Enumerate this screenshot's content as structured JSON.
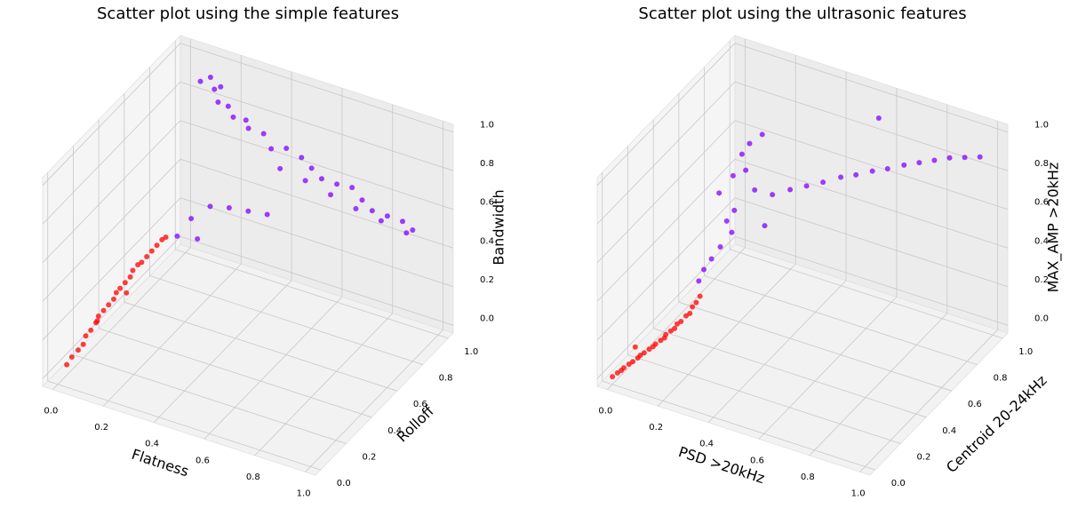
{
  "chart_data": [
    {
      "type": "scatter3d",
      "title": "Scatter plot using the simple features",
      "xlabel": "Flatness",
      "ylabel": "Rolloff",
      "zlabel": "Bandwidth",
      "xlim": [
        -0.04,
        1.04
      ],
      "ylim": [
        -0.04,
        1.04
      ],
      "zlim": [
        -0.04,
        1.04
      ],
      "xticks": [
        {
          "value": 0,
          "label": "0.0"
        },
        {
          "value": 0.2,
          "label": "0.2"
        },
        {
          "value": 0.4,
          "label": "0.4"
        },
        {
          "value": 0.6,
          "label": "0.6"
        },
        {
          "value": 0.8,
          "label": "0.8"
        },
        {
          "value": 1,
          "label": "1.0"
        }
      ],
      "yticks": [
        {
          "value": 0,
          "label": "0.0"
        },
        {
          "value": 0.2,
          "label": "0.2"
        },
        {
          "value": 0.4,
          "label": "0.4"
        },
        {
          "value": 0.6,
          "label": "0.6"
        },
        {
          "value": 0.8,
          "label": "0.8"
        },
        {
          "value": 1,
          "label": "1.0"
        }
      ],
      "zticks": [
        {
          "value": 0,
          "label": "0.0"
        },
        {
          "value": 0.2,
          "label": "0.2"
        },
        {
          "value": 0.4,
          "label": "0.4"
        },
        {
          "value": 0.6,
          "label": "0.6"
        },
        {
          "value": 0.8,
          "label": "0.8"
        },
        {
          "value": 1,
          "label": "1.0"
        }
      ],
      "grid": true,
      "series": [
        {
          "color": "#ff0000",
          "x": [
            0.02,
            0.03,
            0.04,
            0.05,
            0.05,
            0.06,
            0.07,
            0.07,
            0.08,
            0.09,
            0.1,
            0.1,
            0.11,
            0.12,
            0.13,
            0.13,
            0.14,
            0.15,
            0.16,
            0.17,
            0.18,
            0.19,
            0.2,
            0.12,
            0.08
          ],
          "y": [
            0.03,
            0.05,
            0.08,
            0.1,
            0.12,
            0.14,
            0.16,
            0.18,
            0.2,
            0.22,
            0.24,
            0.26,
            0.27,
            0.29,
            0.31,
            0.33,
            0.35,
            0.36,
            0.38,
            0.4,
            0.42,
            0.44,
            0.45,
            0.3,
            0.15
          ],
          "z": [
            0.05,
            0.08,
            0.1,
            0.12,
            0.15,
            0.17,
            0.2,
            0.22,
            0.24,
            0.26,
            0.28,
            0.3,
            0.32,
            0.34,
            0.36,
            0.38,
            0.4,
            0.41,
            0.43,
            0.45,
            0.47,
            0.49,
            0.5,
            0.28,
            0.22
          ]
        },
        {
          "color": "#8000ff",
          "x": [
            0.12,
            0.15,
            0.18,
            0.2,
            0.22,
            0.25,
            0.28,
            0.14,
            0.3,
            0.35,
            0.4,
            0.45,
            0.5,
            0.55,
            0.6,
            0.65,
            0.7,
            0.75,
            0.8,
            0.85,
            0.9,
            0.95,
            0.4,
            0.5,
            0.6,
            0.7,
            0.8,
            0.9,
            0.3,
            0.35,
            0.4,
            0.45,
            0.25,
            0.3,
            0.22
          ],
          "y": [
            0.88,
            0.9,
            0.92,
            0.86,
            0.9,
            0.88,
            0.92,
            0.95,
            0.9,
            0.92,
            0.88,
            0.9,
            0.92,
            0.9,
            0.88,
            0.9,
            0.92,
            0.9,
            0.88,
            0.9,
            0.92,
            0.9,
            0.95,
            0.95,
            0.95,
            0.95,
            0.95,
            0.95,
            0.6,
            0.65,
            0.7,
            0.75,
            0.55,
            0.5,
            0.5
          ],
          "z": [
            0.98,
            1.0,
            0.95,
            0.92,
            0.88,
            0.85,
            0.82,
            0.9,
            0.8,
            0.78,
            0.75,
            0.76,
            0.72,
            0.7,
            0.68,
            0.66,
            0.65,
            0.62,
            0.6,
            0.58,
            0.56,
            0.55,
            0.6,
            0.58,
            0.55,
            0.52,
            0.5,
            0.48,
            0.6,
            0.58,
            0.55,
            0.52,
            0.55,
            0.5,
            0.48
          ]
        }
      ]
    },
    {
      "type": "scatter3d",
      "title": "Scatter plot using the ultrasonic features",
      "xlabel": "PSD >20kHz",
      "ylabel": "Centroid 20-24kHz",
      "zlabel": "MAX_AMP >20kHz",
      "xlim": [
        -0.04,
        1.04
      ],
      "ylim": [
        -0.04,
        1.04
      ],
      "zlim": [
        -0.04,
        1.04
      ],
      "xticks": [
        {
          "value": 0,
          "label": "0.0"
        },
        {
          "value": 0.2,
          "label": "0.2"
        },
        {
          "value": 0.4,
          "label": "0.4"
        },
        {
          "value": 0.6,
          "label": "0.6"
        },
        {
          "value": 0.8,
          "label": "0.8"
        },
        {
          "value": 1,
          "label": "1.0"
        }
      ],
      "yticks": [
        {
          "value": 0,
          "label": "0.0"
        },
        {
          "value": 0.2,
          "label": "0.2"
        },
        {
          "value": 0.4,
          "label": "0.4"
        },
        {
          "value": 0.6,
          "label": "0.6"
        },
        {
          "value": 0.8,
          "label": "0.8"
        },
        {
          "value": 1,
          "label": "1.0"
        }
      ],
      "zticks": [
        {
          "value": 0,
          "label": "0.0"
        },
        {
          "value": 0.2,
          "label": "0.2"
        },
        {
          "value": 0.4,
          "label": "0.4"
        },
        {
          "value": 0.6,
          "label": "0.6"
        },
        {
          "value": 0.8,
          "label": "0.8"
        },
        {
          "value": 1,
          "label": "1.0"
        }
      ],
      "grid": true,
      "series": [
        {
          "color": "#ff0000",
          "x": [
            0.0,
            0.01,
            0.02,
            0.02,
            0.03,
            0.04,
            0.05,
            0.05,
            0.06,
            0.07,
            0.08,
            0.08,
            0.09,
            0.1,
            0.1,
            0.11,
            0.12,
            0.12,
            0.13,
            0.14,
            0.15,
            0.15,
            0.16,
            0.17,
            0.05
          ],
          "y": [
            0.0,
            0.02,
            0.03,
            0.05,
            0.07,
            0.08,
            0.1,
            0.12,
            0.13,
            0.15,
            0.16,
            0.18,
            0.2,
            0.21,
            0.22,
            0.24,
            0.25,
            0.27,
            0.28,
            0.3,
            0.31,
            0.33,
            0.34,
            0.35,
            0.08
          ],
          "z": [
            0.0,
            0.01,
            0.02,
            0.02,
            0.03,
            0.04,
            0.05,
            0.05,
            0.06,
            0.07,
            0.08,
            0.08,
            0.09,
            0.1,
            0.11,
            0.12,
            0.13,
            0.14,
            0.15,
            0.17,
            0.18,
            0.2,
            0.22,
            0.25,
            0.12
          ]
        },
        {
          "color": "#8000ff",
          "x": [
            0.15,
            0.16,
            0.18,
            0.2,
            0.2,
            0.22,
            0.18,
            0.2,
            0.22,
            0.24,
            0.25,
            0.3,
            0.35,
            0.4,
            0.45,
            0.5,
            0.55,
            0.6,
            0.65,
            0.7,
            0.75,
            0.8,
            0.85,
            0.9,
            0.95,
            0.3,
            0.25,
            0.28,
            0.22,
            0.6
          ],
          "y": [
            0.38,
            0.4,
            0.42,
            0.45,
            0.5,
            0.52,
            0.48,
            0.55,
            0.58,
            0.6,
            0.62,
            0.66,
            0.7,
            0.73,
            0.76,
            0.8,
            0.82,
            0.85,
            0.87,
            0.9,
            0.92,
            0.94,
            0.96,
            0.98,
            1.0,
            0.6,
            0.55,
            0.62,
            0.5,
            0.9
          ],
          "z": [
            0.3,
            0.35,
            0.4,
            0.45,
            0.55,
            0.6,
            0.7,
            0.75,
            0.85,
            0.9,
            0.65,
            0.62,
            0.64,
            0.66,
            0.68,
            0.7,
            0.72,
            0.74,
            0.76,
            0.78,
            0.8,
            0.82,
            0.84,
            0.85,
            0.86,
            0.5,
            0.8,
            0.95,
            0.5,
            0.98
          ]
        }
      ]
    }
  ]
}
